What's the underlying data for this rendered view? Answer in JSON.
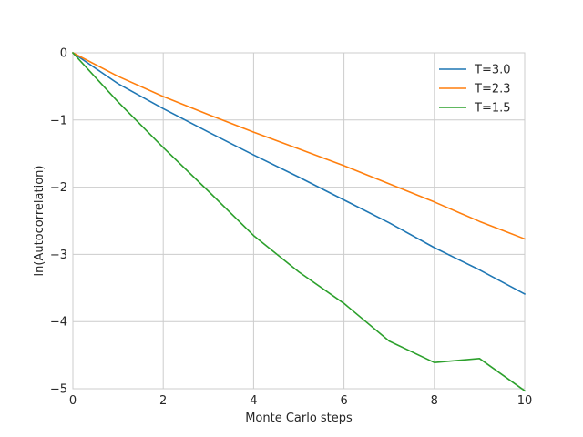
{
  "chart_data": {
    "type": "line",
    "title": "",
    "xlabel": "Monte Carlo steps",
    "ylabel": "ln(Autocorrelation)",
    "xlim": [
      0,
      10
    ],
    "ylim": [
      -5,
      0
    ],
    "xticks": [
      0,
      2,
      4,
      6,
      8,
      10
    ],
    "yticks": [
      0,
      -1,
      -2,
      -3,
      -4,
      -5
    ],
    "xtick_labels": [
      "0",
      "2",
      "4",
      "6",
      "8",
      "10"
    ],
    "ytick_labels": [
      "0",
      "−1",
      "−2",
      "−3",
      "−4",
      "−5"
    ],
    "grid": true,
    "legend_position": "top-right",
    "x": [
      0,
      1,
      2,
      3,
      4,
      5,
      6,
      7,
      8,
      9,
      10
    ],
    "series": [
      {
        "name": "T=3.0",
        "color": "#1f77b4",
        "values": [
          0,
          -0.46,
          -0.83,
          -1.18,
          -1.52,
          -1.85,
          -2.19,
          -2.53,
          -2.9,
          -3.23,
          -3.59
        ]
      },
      {
        "name": "T=2.3",
        "color": "#ff7f0e",
        "values": [
          0,
          -0.35,
          -0.65,
          -0.92,
          -1.18,
          -1.43,
          -1.68,
          -1.95,
          -2.22,
          -2.51,
          -2.77
        ]
      },
      {
        "name": "T=1.5",
        "color": "#2ca02c",
        "values": [
          0,
          -0.73,
          -1.41,
          -2.06,
          -2.72,
          -3.26,
          -3.73,
          -4.29,
          -4.61,
          -4.55,
          -5.03
        ]
      }
    ]
  }
}
